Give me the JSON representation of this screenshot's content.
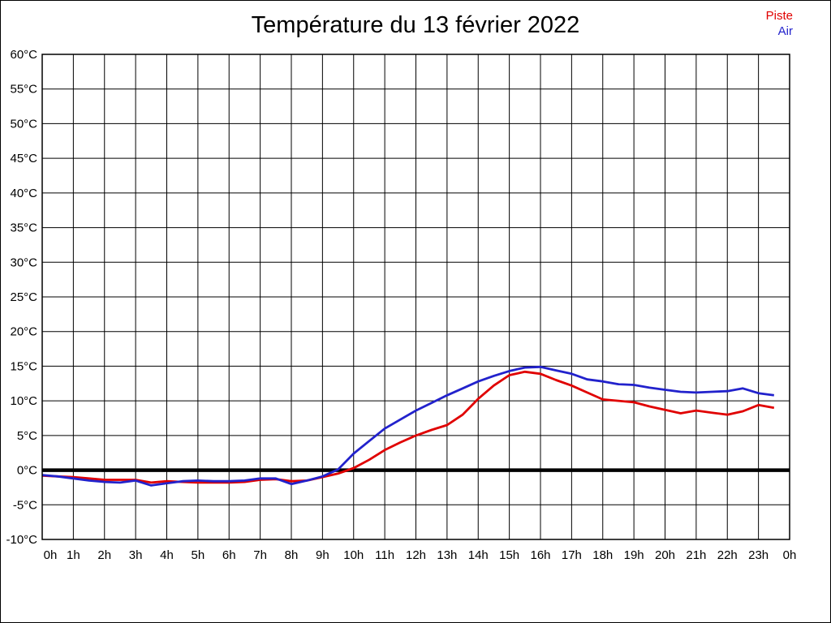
{
  "page": {
    "background_color": "#ffffff",
    "border_color": "#000000"
  },
  "chart_data": {
    "type": "line",
    "title": "Température du 13 février 2022",
    "xlabel": "",
    "ylabel": "",
    "grid": "on",
    "legend_position": "top-right",
    "x_range": [
      0,
      24
    ],
    "y_range": [
      -10,
      60
    ],
    "y_step": 5,
    "x_step": 1,
    "x_tick_labels": [
      "0h",
      "1h",
      "2h",
      "3h",
      "4h",
      "5h",
      "6h",
      "7h",
      "8h",
      "9h",
      "10h",
      "11h",
      "12h",
      "13h",
      "14h",
      "15h",
      "16h",
      "17h",
      "18h",
      "19h",
      "20h",
      "21h",
      "22h",
      "23h",
      "0h"
    ],
    "y_tick_labels": [
      "60°C",
      "55°C",
      "50°C",
      "45°C",
      "40°C",
      "35°C",
      "30°C",
      "25°C",
      "20°C",
      "15°C",
      "10°C",
      "5°C",
      "0°C",
      "-5°C",
      "-10°C"
    ],
    "zero_line": {
      "value": 0,
      "color": "#000000"
    },
    "x": [
      0,
      0.5,
      1,
      1.5,
      2,
      2.5,
      3,
      3.5,
      4,
      4.5,
      5,
      5.5,
      6,
      6.5,
      7,
      7.5,
      8,
      8.5,
      9,
      9.5,
      10,
      10.5,
      11,
      11.5,
      12,
      12.5,
      13,
      13.5,
      14,
      14.5,
      15,
      15.5,
      16,
      16.5,
      17,
      17.5,
      18,
      18.5,
      19,
      19.5,
      20,
      20.5,
      21,
      21.5,
      22,
      22.5,
      23,
      23.5
    ],
    "series": [
      {
        "name": "Piste",
        "color": "#e00000",
        "values": [
          -0.8,
          -0.9,
          -1.0,
          -1.2,
          -1.4,
          -1.4,
          -1.4,
          -1.8,
          -1.6,
          -1.7,
          -1.8,
          -1.8,
          -1.8,
          -1.7,
          -1.4,
          -1.3,
          -1.6,
          -1.5,
          -1.0,
          -0.5,
          0.3,
          1.5,
          2.9,
          4.0,
          5.0,
          5.8,
          6.5,
          8.0,
          10.3,
          12.2,
          13.7,
          14.2,
          13.9,
          13.0,
          12.2,
          11.2,
          10.2,
          10.0,
          9.8,
          9.2,
          8.7,
          8.2,
          8.6,
          8.3,
          8.0,
          8.5,
          9.4,
          9.0
        ]
      },
      {
        "name": "Air",
        "color": "#2222cc",
        "values": [
          -0.7,
          -0.9,
          -1.2,
          -1.5,
          -1.7,
          -1.8,
          -1.5,
          -2.2,
          -1.9,
          -1.6,
          -1.5,
          -1.6,
          -1.6,
          -1.5,
          -1.2,
          -1.2,
          -2.0,
          -1.5,
          -0.9,
          0.1,
          2.4,
          4.2,
          6.0,
          7.3,
          8.6,
          9.7,
          10.8,
          11.8,
          12.8,
          13.6,
          14.3,
          14.8,
          14.9,
          14.4,
          13.9,
          13.1,
          12.8,
          12.4,
          12.3,
          11.9,
          11.6,
          11.3,
          11.2,
          11.3,
          11.4,
          11.8,
          11.1,
          10.8
        ]
      }
    ]
  }
}
